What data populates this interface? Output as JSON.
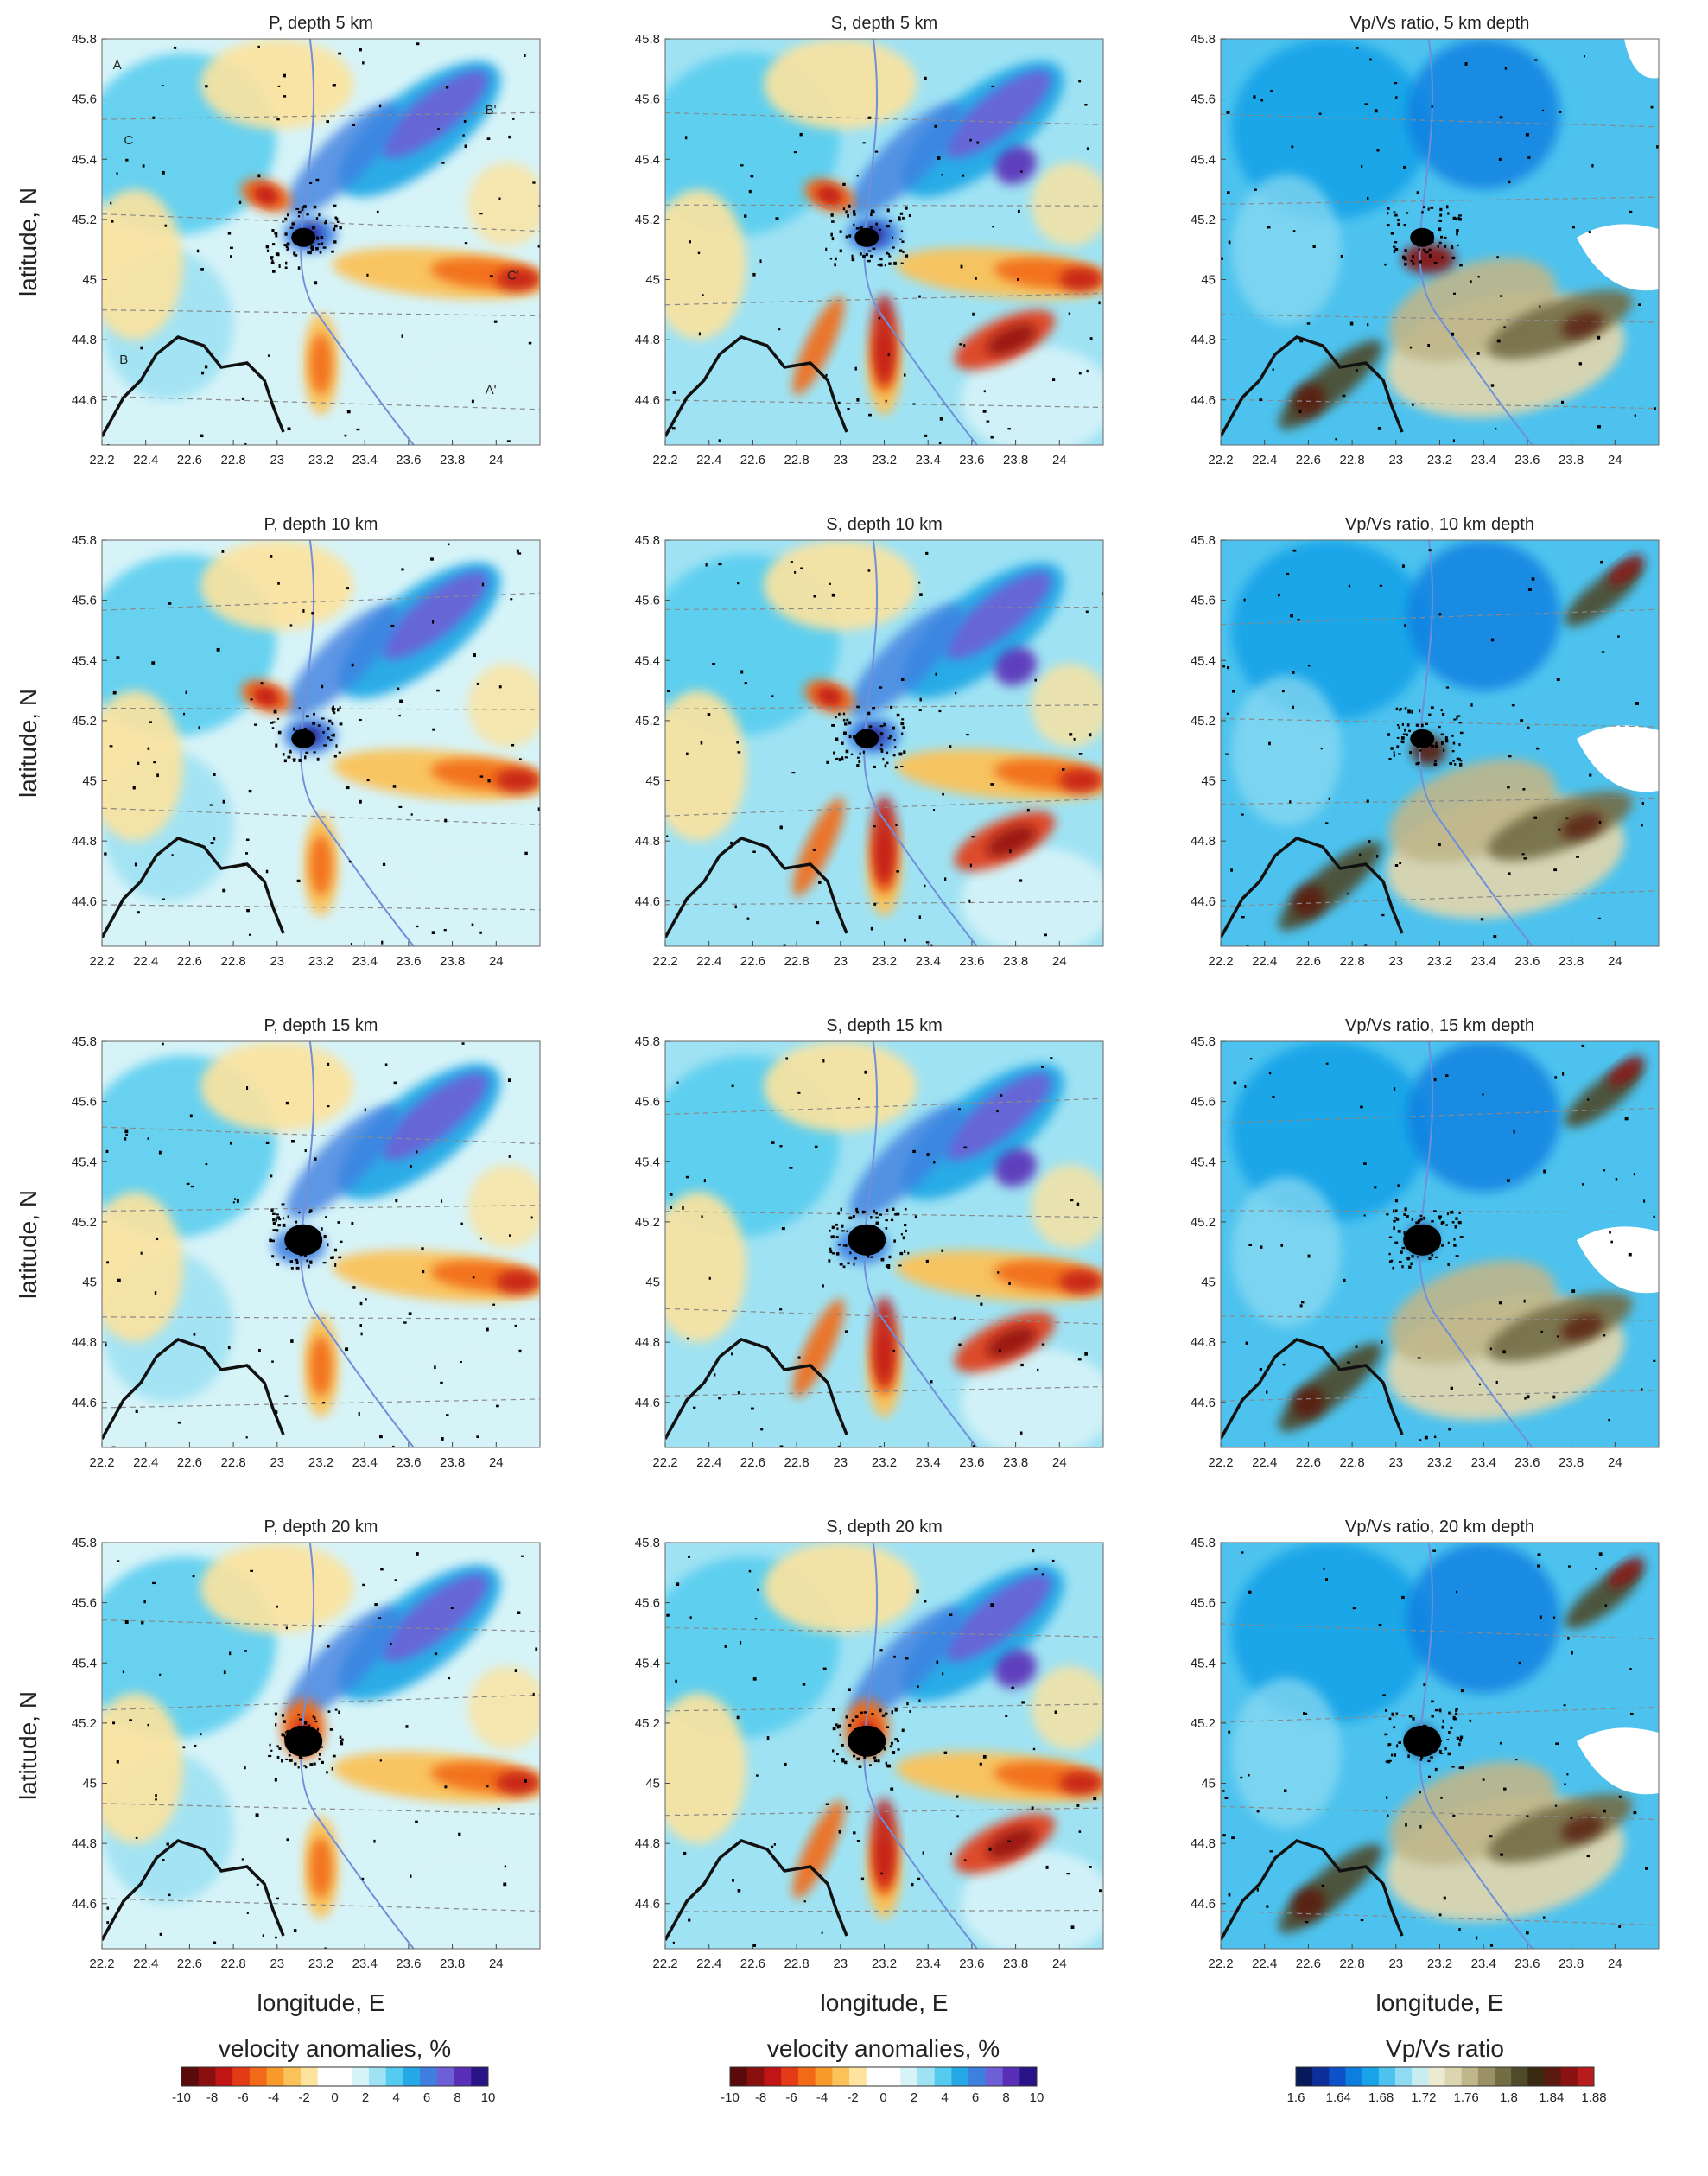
{
  "figure": {
    "ylabel": "latitude, N",
    "xlabel": "longitude, E"
  },
  "colors": {
    "velocity_scale": [
      "#5a0a0a",
      "#8a1010",
      "#c01515",
      "#e33b15",
      "#f26a17",
      "#f79a2a",
      "#fbc25a",
      "#fde39e",
      "#ffffff",
      "#ffffff",
      "#d6f3f8",
      "#9fe2f3",
      "#55ccef",
      "#24a9e6",
      "#3f7fe0",
      "#6e5fd6",
      "#5a2fb8",
      "#2a1386"
    ],
    "vpvs_scale": [
      "#081a5e",
      "#0d2f9a",
      "#0d52c8",
      "#0b7ee0",
      "#18a3e8",
      "#4dc2ee",
      "#8fdcf2",
      "#c8ecef",
      "#ecebd2",
      "#dcd6b0",
      "#bfb68a",
      "#9a9166",
      "#736c45",
      "#4e4a2a",
      "#3a2a14",
      "#5a1a10",
      "#8a1212",
      "#b81c1c"
    ]
  },
  "chart_data": [
    {
      "type": "heatmap",
      "title": "P, depth 5 km",
      "layer": "P",
      "depth_km": 5,
      "xlim": [
        22.2,
        24.2
      ],
      "ylim": [
        44.45,
        45.8
      ],
      "x_ticks": [
        "22.2",
        "22.4",
        "22.6",
        "22.8",
        "23",
        "23.2",
        "23.4",
        "23.6",
        "23.8",
        "24"
      ],
      "y_ticks": [
        "45.8",
        "45.6",
        "45.4",
        "45.2",
        "45",
        "44.8",
        "44.6"
      ],
      "annotations": [
        "A",
        "B'",
        "C",
        "C'",
        "B",
        "A'"
      ],
      "colorbar": "velocity"
    },
    {
      "type": "heatmap",
      "title": "S, depth 5 km",
      "layer": "S",
      "depth_km": 5,
      "xlim": [
        22.2,
        24.2
      ],
      "ylim": [
        44.45,
        45.8
      ],
      "x_ticks": [
        "22.2",
        "22.4",
        "22.6",
        "22.8",
        "23",
        "23.2",
        "23.4",
        "23.6",
        "23.8",
        "24"
      ],
      "y_ticks": [
        "45.8",
        "45.6",
        "45.4",
        "45.2",
        "45",
        "44.8",
        "44.6"
      ],
      "annotations": [],
      "colorbar": "velocity"
    },
    {
      "type": "heatmap",
      "title": "Vp/Vs ratio, 5 km depth",
      "layer": "VpVs",
      "depth_km": 5,
      "xlim": [
        22.2,
        24.2
      ],
      "ylim": [
        44.45,
        45.8
      ],
      "x_ticks": [
        "22.2",
        "22.4",
        "22.6",
        "22.8",
        "23",
        "23.2",
        "23.4",
        "23.6",
        "23.8",
        "24"
      ],
      "y_ticks": [
        "45.8",
        "45.6",
        "45.4",
        "45.2",
        "45",
        "44.8",
        "44.6"
      ],
      "annotations": [],
      "colorbar": "vpvs"
    },
    {
      "type": "heatmap",
      "title": "P, depth 10 km",
      "layer": "P",
      "depth_km": 10,
      "xlim": [
        22.2,
        24.2
      ],
      "ylim": [
        44.45,
        45.8
      ],
      "x_ticks": [
        "22.2",
        "22.4",
        "22.6",
        "22.8",
        "23",
        "23.2",
        "23.4",
        "23.6",
        "23.8",
        "24"
      ],
      "y_ticks": [
        "45.8",
        "45.6",
        "45.4",
        "45.2",
        "45",
        "44.8",
        "44.6"
      ],
      "annotations": [],
      "colorbar": "velocity"
    },
    {
      "type": "heatmap",
      "title": "S, depth 10 km",
      "layer": "S",
      "depth_km": 10,
      "xlim": [
        22.2,
        24.2
      ],
      "ylim": [
        44.45,
        45.8
      ],
      "x_ticks": [
        "22.2",
        "22.4",
        "22.6",
        "22.8",
        "23",
        "23.2",
        "23.4",
        "23.6",
        "23.8",
        "24"
      ],
      "y_ticks": [
        "45.8",
        "45.6",
        "45.4",
        "45.2",
        "45",
        "44.8",
        "44.6"
      ],
      "annotations": [],
      "colorbar": "velocity"
    },
    {
      "type": "heatmap",
      "title": "Vp/Vs ratio, 10 km depth",
      "layer": "VpVs",
      "depth_km": 10,
      "xlim": [
        22.2,
        24.2
      ],
      "ylim": [
        44.45,
        45.8
      ],
      "x_ticks": [
        "22.2",
        "22.4",
        "22.6",
        "22.8",
        "23",
        "23.2",
        "23.4",
        "23.6",
        "23.8",
        "24"
      ],
      "y_ticks": [
        "45.8",
        "45.6",
        "45.4",
        "45.2",
        "45",
        "44.8",
        "44.6"
      ],
      "annotations": [],
      "colorbar": "vpvs"
    },
    {
      "type": "heatmap",
      "title": "P, depth 15 km",
      "layer": "P",
      "depth_km": 15,
      "xlim": [
        22.2,
        24.2
      ],
      "ylim": [
        44.45,
        45.8
      ],
      "x_ticks": [
        "22.2",
        "22.4",
        "22.6",
        "22.8",
        "23",
        "23.2",
        "23.4",
        "23.6",
        "23.8",
        "24"
      ],
      "y_ticks": [
        "45.8",
        "45.6",
        "45.4",
        "45.2",
        "45",
        "44.8",
        "44.6"
      ],
      "annotations": [],
      "colorbar": "velocity"
    },
    {
      "type": "heatmap",
      "title": "S, depth 15 km",
      "layer": "S",
      "depth_km": 15,
      "xlim": [
        22.2,
        24.2
      ],
      "ylim": [
        44.45,
        45.8
      ],
      "x_ticks": [
        "22.2",
        "22.4",
        "22.6",
        "22.8",
        "23",
        "23.2",
        "23.4",
        "23.6",
        "23.8",
        "24"
      ],
      "y_ticks": [
        "45.8",
        "45.6",
        "45.4",
        "45.2",
        "45",
        "44.8",
        "44.6"
      ],
      "annotations": [],
      "colorbar": "velocity"
    },
    {
      "type": "heatmap",
      "title": "Vp/Vs ratio, 15 km depth",
      "layer": "VpVs",
      "depth_km": 15,
      "xlim": [
        22.2,
        24.2
      ],
      "ylim": [
        44.45,
        45.8
      ],
      "x_ticks": [
        "22.2",
        "22.4",
        "22.6",
        "22.8",
        "23",
        "23.2",
        "23.4",
        "23.6",
        "23.8",
        "24"
      ],
      "y_ticks": [
        "45.8",
        "45.6",
        "45.4",
        "45.2",
        "45",
        "44.8",
        "44.6"
      ],
      "annotations": [],
      "colorbar": "vpvs"
    },
    {
      "type": "heatmap",
      "title": "P, depth 20 km",
      "layer": "P",
      "depth_km": 20,
      "xlim": [
        22.2,
        24.2
      ],
      "ylim": [
        44.45,
        45.8
      ],
      "x_ticks": [
        "22.2",
        "22.4",
        "22.6",
        "22.8",
        "23",
        "23.2",
        "23.4",
        "23.6",
        "23.8",
        "24"
      ],
      "y_ticks": [
        "45.8",
        "45.6",
        "45.4",
        "45.2",
        "45",
        "44.8",
        "44.6"
      ],
      "annotations": [],
      "colorbar": "velocity"
    },
    {
      "type": "heatmap",
      "title": "S, depth 20 km",
      "layer": "S",
      "depth_km": 20,
      "xlim": [
        22.2,
        24.2
      ],
      "ylim": [
        44.45,
        45.8
      ],
      "x_ticks": [
        "22.2",
        "22.4",
        "22.6",
        "22.8",
        "23",
        "23.2",
        "23.4",
        "23.6",
        "23.8",
        "24"
      ],
      "y_ticks": [
        "45.8",
        "45.6",
        "45.4",
        "45.2",
        "45",
        "44.8",
        "44.6"
      ],
      "annotations": [],
      "colorbar": "velocity"
    },
    {
      "type": "heatmap",
      "title": "Vp/Vs ratio, 20 km depth",
      "layer": "VpVs",
      "depth_km": 20,
      "xlim": [
        22.2,
        24.2
      ],
      "ylim": [
        44.45,
        45.8
      ],
      "x_ticks": [
        "22.2",
        "22.4",
        "22.6",
        "22.8",
        "23",
        "23.2",
        "23.4",
        "23.6",
        "23.8",
        "24"
      ],
      "y_ticks": [
        "45.8",
        "45.6",
        "45.4",
        "45.2",
        "45",
        "44.8",
        "44.6"
      ],
      "annotations": [],
      "colorbar": "vpvs"
    }
  ],
  "colorbars": [
    {
      "id": "velocity-left",
      "title": "velocity anomalies, %",
      "kind": "velocity",
      "ticks": [
        "-10",
        "-8",
        "-6",
        "-4",
        "-2",
        "0",
        "2",
        "4",
        "6",
        "8",
        "10"
      ]
    },
    {
      "id": "velocity-mid",
      "title": "velocity anomalies, %",
      "kind": "velocity",
      "ticks": [
        "-10",
        "-8",
        "-6",
        "-4",
        "-2",
        "0",
        "2",
        "4",
        "6",
        "8",
        "10"
      ]
    },
    {
      "id": "vpvs",
      "title": "Vp/Vs ratio",
      "kind": "vpvs",
      "ticks": [
        "1.6",
        "1.64",
        "1.68",
        "1.72",
        "1.76",
        "1.8",
        "1.84",
        "1.88"
      ]
    }
  ]
}
